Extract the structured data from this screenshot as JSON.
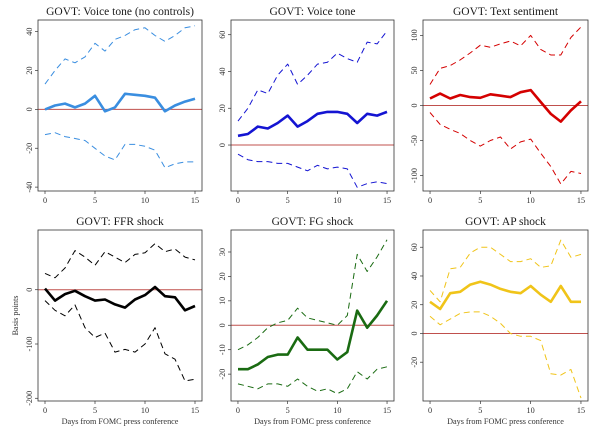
{
  "figure": {
    "background": "#ffffff"
  },
  "chart_data": [
    {
      "type": "line",
      "title": "GOVT: Voice tone (no controls)",
      "xlabel": "",
      "ylabel": "",
      "color": "#3a8ee0",
      "x": [
        0,
        1,
        2,
        3,
        4,
        5,
        6,
        7,
        8,
        9,
        10,
        11,
        12,
        13,
        14,
        15
      ],
      "xlim": [
        -0.7,
        15.7
      ],
      "ylim": [
        -42,
        46
      ],
      "xticks": [
        0,
        5,
        10,
        15
      ],
      "yticks": [
        -40,
        -20,
        0,
        20,
        40
      ],
      "series": [
        {
          "role": "point",
          "values": [
            0,
            2,
            3,
            1,
            3,
            7,
            -1,
            1,
            8,
            7.5,
            7,
            6,
            -1,
            2,
            4,
            5.5
          ]
        },
        {
          "role": "upper",
          "values": [
            13,
            20,
            26,
            24,
            27,
            34,
            30,
            36,
            38,
            41,
            42,
            38,
            35,
            38,
            42,
            43
          ]
        },
        {
          "role": "lower",
          "values": [
            -13,
            -12,
            -14,
            -15,
            -16,
            -20,
            -24,
            -26,
            -18,
            -18,
            -19,
            -21,
            -30,
            -28,
            -27,
            -27
          ]
        }
      ],
      "zero_line_color": "#c0504d"
    },
    {
      "type": "line",
      "title": "GOVT: Voice tone",
      "xlabel": "",
      "ylabel": "",
      "color": "#1414d2",
      "x": [
        0,
        1,
        2,
        3,
        4,
        5,
        6,
        7,
        8,
        9,
        10,
        11,
        12,
        13,
        14,
        15
      ],
      "xlim": [
        -0.7,
        15.7
      ],
      "ylim": [
        -25,
        68
      ],
      "xticks": [
        0,
        5,
        10,
        15
      ],
      "yticks": [
        0,
        20,
        40,
        60
      ],
      "series": [
        {
          "role": "point",
          "values": [
            5,
            6,
            10,
            9,
            12,
            16,
            10,
            13,
            17,
            18,
            18,
            17,
            12,
            17,
            16,
            18
          ]
        },
        {
          "role": "upper",
          "values": [
            13,
            20,
            30,
            28,
            38,
            44,
            33,
            38,
            44,
            45,
            50,
            47,
            45,
            56,
            55,
            62
          ]
        },
        {
          "role": "lower",
          "values": [
            -5,
            -8,
            -9,
            -9,
            -10,
            -10,
            -12,
            -14,
            -11,
            -13,
            -12,
            -13,
            -23,
            -21,
            -20,
            -21
          ]
        }
      ],
      "zero_line_color": "#c0504d"
    },
    {
      "type": "line",
      "title": "GOVT: Text sentiment",
      "xlabel": "",
      "ylabel": "",
      "color": "#d40000",
      "x": [
        0,
        1,
        2,
        3,
        4,
        5,
        6,
        7,
        8,
        9,
        10,
        11,
        12,
        13,
        14,
        15
      ],
      "xlim": [
        -0.7,
        15.7
      ],
      "ylim": [
        -122,
        122
      ],
      "xticks": [
        0,
        5,
        10,
        15
      ],
      "yticks": [
        -100,
        -50,
        0,
        50,
        100
      ],
      "series": [
        {
          "role": "point",
          "values": [
            10,
            17,
            10,
            15,
            12,
            11,
            16,
            14,
            12,
            19,
            22,
            5,
            -12,
            -23,
            -7,
            6
          ]
        },
        {
          "role": "upper",
          "values": [
            30,
            53,
            57,
            65,
            75,
            86,
            83,
            88,
            92,
            85,
            100,
            80,
            72,
            72,
            97,
            112
          ]
        },
        {
          "role": "lower",
          "values": [
            -10,
            -27,
            -34,
            -40,
            -50,
            -58,
            -50,
            -45,
            -62,
            -52,
            -48,
            -68,
            -87,
            -112,
            -94,
            -97
          ]
        }
      ],
      "zero_line_color": "#c0504d"
    },
    {
      "type": "line",
      "title": "GOVT: FFR shock",
      "xlabel": "Days from FOMC press conference",
      "ylabel": "Basis points",
      "color": "#000000",
      "x": [
        0,
        1,
        2,
        3,
        4,
        5,
        6,
        7,
        8,
        9,
        10,
        11,
        12,
        13,
        14,
        15
      ],
      "xlim": [
        -0.7,
        15.7
      ],
      "ylim": [
        -205,
        110
      ],
      "xticks": [
        0,
        5,
        10,
        15
      ],
      "yticks": [
        -200,
        -100,
        0
      ],
      "series": [
        {
          "role": "point",
          "values": [
            2,
            -20,
            -8,
            -2,
            -12,
            -20,
            -18,
            -27,
            -33,
            -18,
            -10,
            5,
            -12,
            -14,
            -38,
            -30
          ]
        },
        {
          "role": "upper",
          "values": [
            30,
            22,
            40,
            72,
            60,
            45,
            70,
            60,
            50,
            65,
            68,
            85,
            70,
            75,
            60,
            55
          ]
        },
        {
          "role": "lower",
          "values": [
            -20,
            -38,
            -48,
            -28,
            -70,
            -88,
            -80,
            -115,
            -110,
            -115,
            -100,
            -70,
            -118,
            -128,
            -168,
            -165
          ]
        }
      ],
      "zero_line_color": "#c0504d"
    },
    {
      "type": "line",
      "title": "GOVT: FG shock",
      "xlabel": "Days from FOMC press conference",
      "ylabel": "",
      "color": "#1a6b12",
      "x": [
        0,
        1,
        2,
        3,
        4,
        5,
        6,
        7,
        8,
        9,
        10,
        11,
        12,
        13,
        14,
        15
      ],
      "xlim": [
        -0.7,
        15.7
      ],
      "ylim": [
        -31,
        39
      ],
      "xticks": [
        0,
        5,
        10,
        15
      ],
      "yticks": [
        -20,
        -10,
        0,
        10,
        20,
        30
      ],
      "series": [
        {
          "role": "point",
          "values": [
            -18,
            -18,
            -16,
            -13,
            -12,
            -12,
            -5,
            -10,
            -10,
            -10,
            -14,
            -11,
            6,
            -1,
            4,
            10
          ]
        },
        {
          "role": "upper",
          "values": [
            -10,
            -8,
            -5,
            -1,
            1,
            2,
            7,
            3,
            2,
            1,
            0,
            4,
            29,
            22,
            28,
            35
          ]
        },
        {
          "role": "lower",
          "values": [
            -24,
            -25,
            -26,
            -24,
            -24,
            -25,
            -22,
            -25,
            -27,
            -26,
            -28,
            -26,
            -19,
            -22,
            -18,
            -17
          ]
        }
      ],
      "zero_line_color": "#c0504d"
    },
    {
      "type": "line",
      "title": "GOVT: AP shock",
      "xlabel": "Days from FOMC press conference",
      "ylabel": "",
      "color": "#f0c419",
      "x": [
        0,
        1,
        2,
        3,
        4,
        5,
        6,
        7,
        8,
        9,
        10,
        11,
        12,
        13,
        14,
        15
      ],
      "xlim": [
        -0.7,
        15.7
      ],
      "ylim": [
        -47,
        72
      ],
      "xticks": [
        0,
        5,
        10,
        15
      ],
      "yticks": [
        -20,
        0,
        20,
        40,
        60
      ],
      "series": [
        {
          "role": "point",
          "values": [
            22,
            17,
            28,
            29,
            34,
            36,
            34,
            31,
            29,
            28,
            33,
            27,
            22,
            33,
            22,
            22
          ]
        },
        {
          "role": "upper",
          "values": [
            30,
            22,
            45,
            46,
            56,
            60,
            60,
            55,
            50,
            50,
            52,
            46,
            47,
            65,
            53,
            55
          ]
        },
        {
          "role": "lower",
          "values": [
            12,
            6,
            10,
            14,
            15,
            15,
            12,
            7,
            0,
            -2,
            -2,
            -5,
            -28,
            -29,
            -25,
            -45
          ]
        }
      ],
      "zero_line_color": "#c0504d"
    }
  ]
}
